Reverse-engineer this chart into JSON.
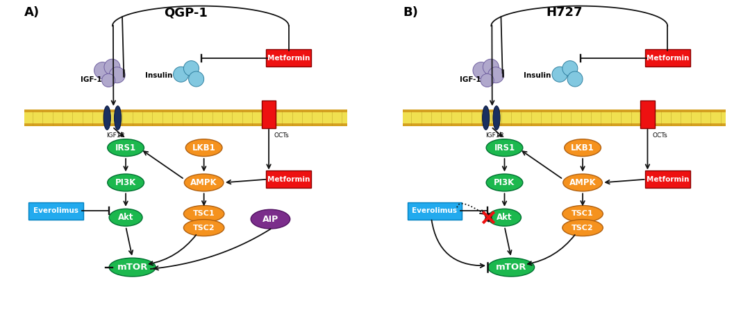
{
  "panel_A_title": "QGP-1",
  "panel_B_title": "H727",
  "label_A": "A)",
  "label_B": "B)",
  "green": "#1cb84e",
  "orange": "#f5921e",
  "red": "#ee1111",
  "cyan": "#22aaee",
  "purple": "#7b2d8b",
  "navy": "#1a3060",
  "mem_outer": "#d4a020",
  "mem_inner": "#f0e050",
  "igf1_fill": "#b0a8cc",
  "insulin_fill": "#82c8e0",
  "white": "#ffffff",
  "black": "#111111",
  "mem_line": "#a08010"
}
